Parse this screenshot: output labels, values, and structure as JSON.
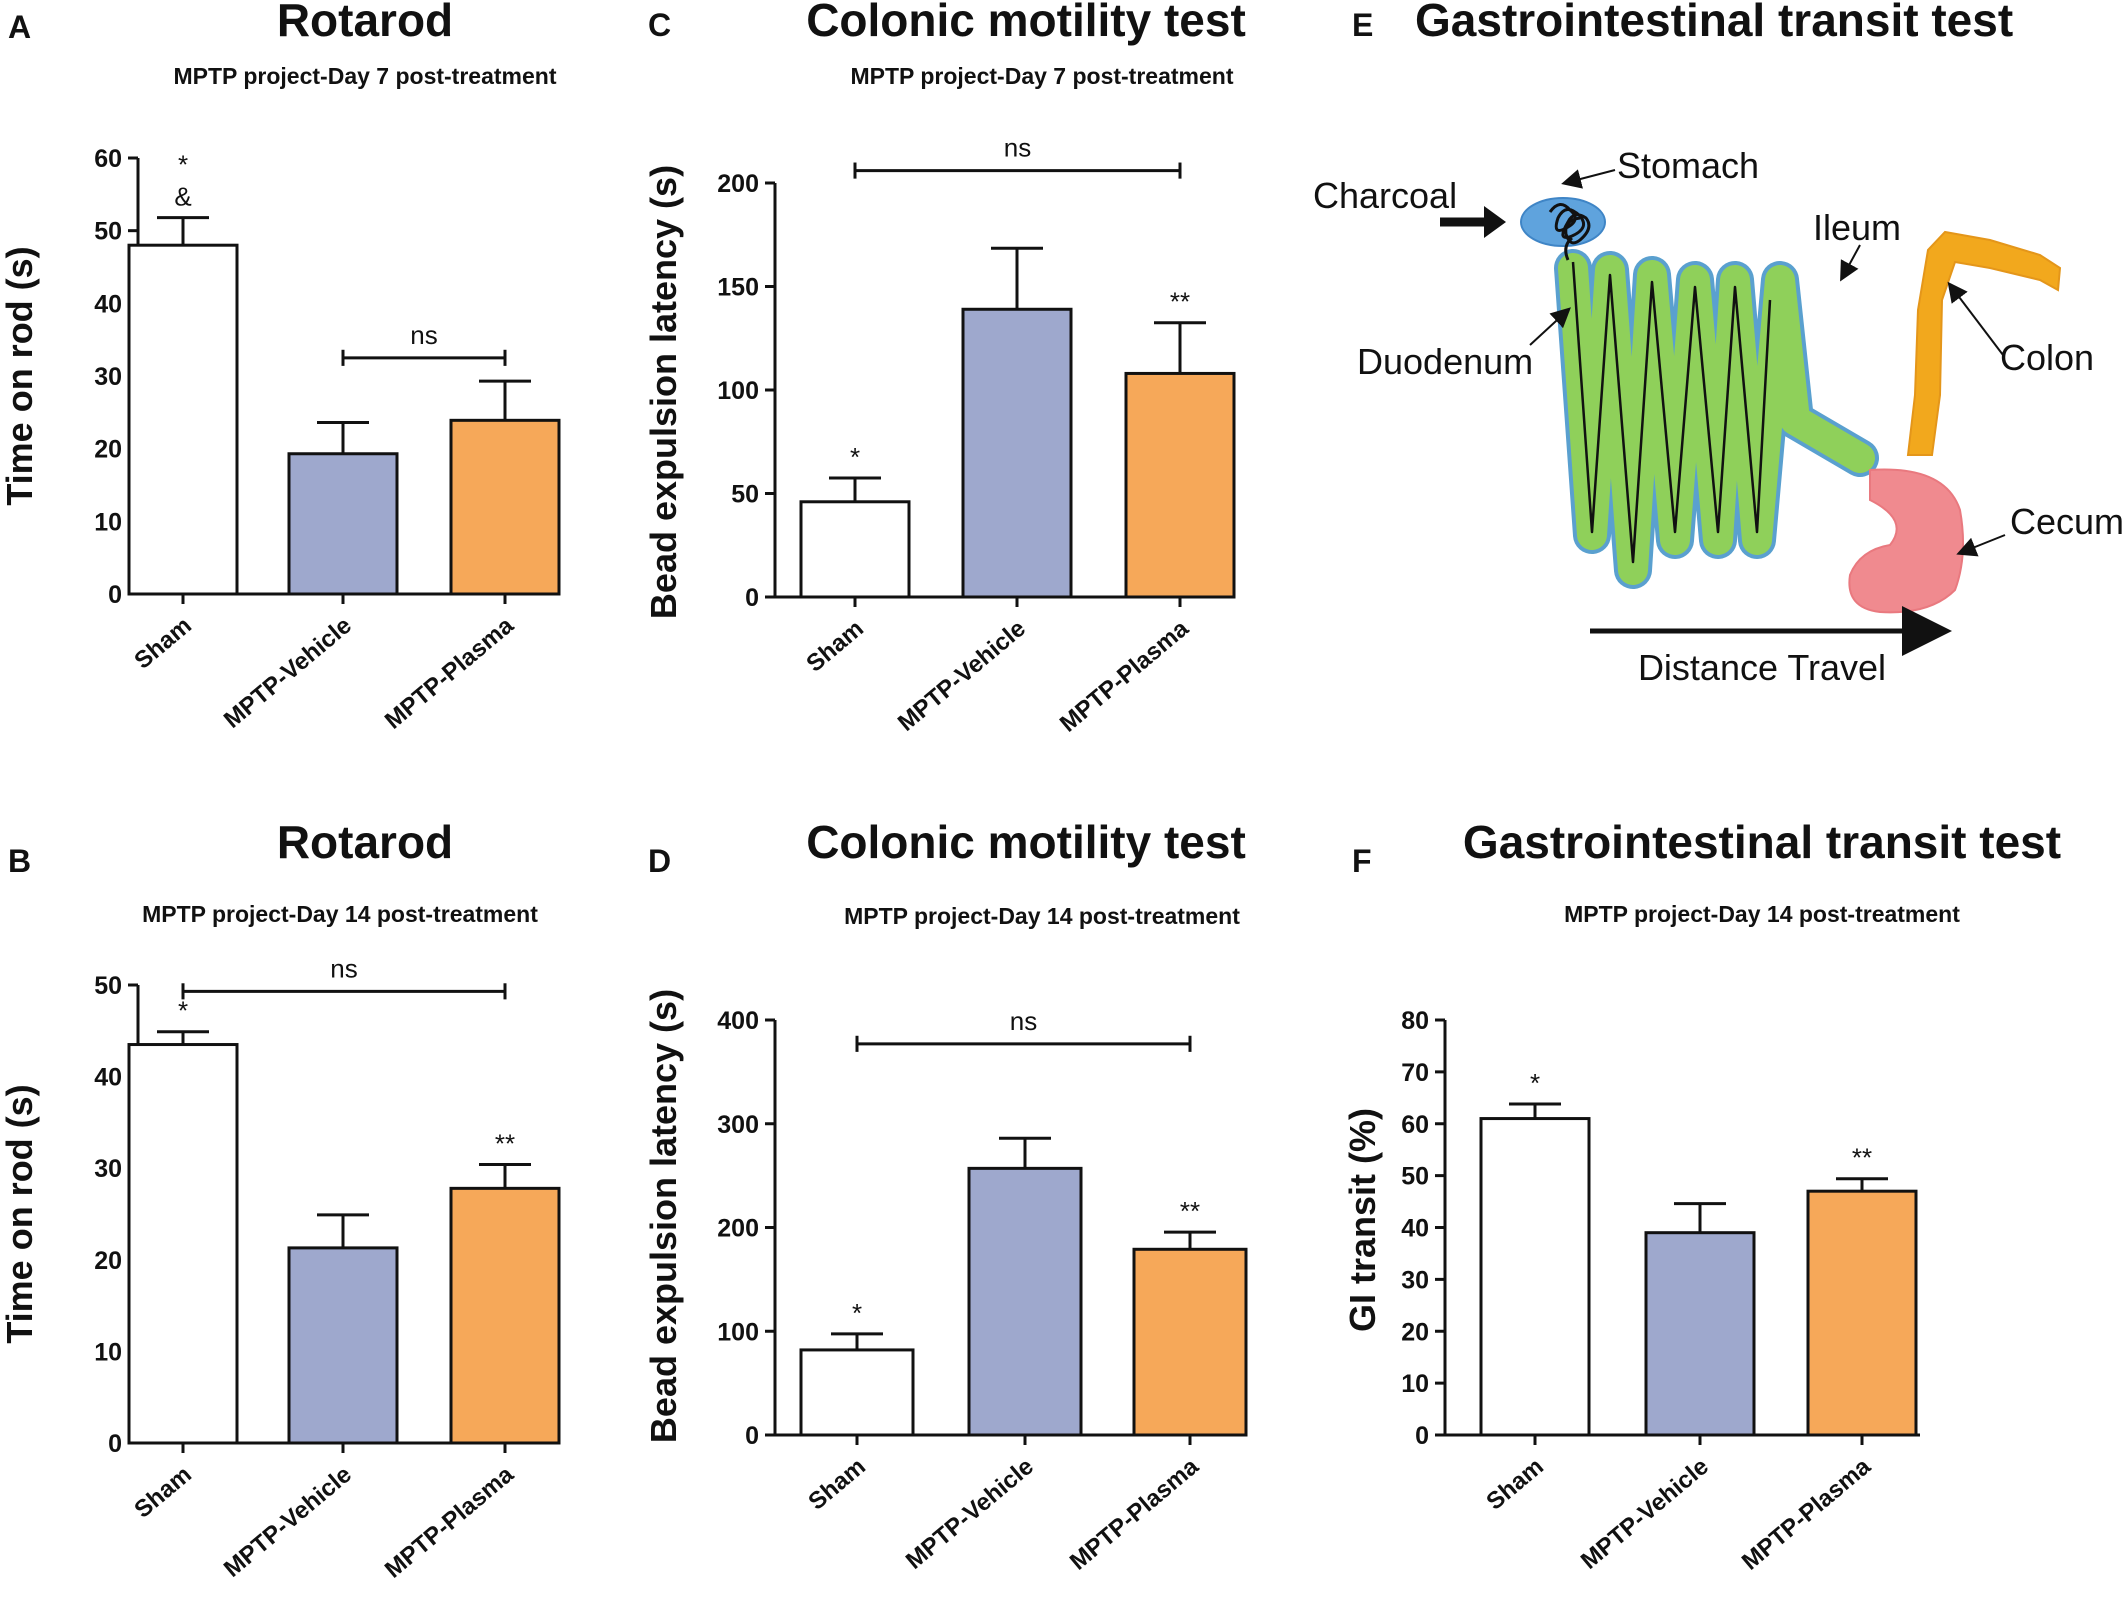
{
  "colors": {
    "Sham": "#ffffff",
    "MPTP-Vehicle": "#9ea8cd",
    "MPTP-Plasma": "#f6a859",
    "stroke": "#111111"
  },
  "chart_data": [
    {
      "id": "A",
      "panel_label": "A",
      "type": "bar",
      "title": "Rotarod",
      "subtitle": "MPTP project-Day 7 post-treatment",
      "xlabel": "",
      "ylabel": "Time on rod (s)",
      "ylim": [
        0,
        60
      ],
      "yticks": [
        "0",
        "10",
        "20",
        "30",
        "40",
        "50",
        "60"
      ],
      "categories": [
        "Sham",
        "MPTP-Vehicle",
        "MPTP-Plasma"
      ],
      "values": [
        48,
        19.3,
        23.9
      ],
      "errors": [
        3.8,
        4.3,
        5.4
      ],
      "annotations": [
        [
          "*",
          "&"
        ],
        [],
        []
      ],
      "brackets": [
        {
          "from": 1,
          "to": 2,
          "y": 32.5,
          "label": "ns"
        }
      ]
    },
    {
      "id": "B",
      "panel_label": "B",
      "type": "bar",
      "title": "Rotarod",
      "subtitle": "MPTP project-Day 14 post-treatment",
      "xlabel": "",
      "ylabel": "Time on rod (s)",
      "ylim": [
        0,
        50
      ],
      "yticks": [
        "0",
        "10",
        "20",
        "30",
        "40",
        "50"
      ],
      "categories": [
        "Sham",
        "MPTP-Vehicle",
        "MPTP-Plasma"
      ],
      "values": [
        43.5,
        21.3,
        27.8
      ],
      "errors": [
        1.4,
        3.6,
        2.6
      ],
      "annotations": [
        [
          "*"
        ],
        [],
        [
          "**"
        ]
      ],
      "brackets": [
        {
          "from": 0,
          "to": 2,
          "y": 49.3,
          "label": "ns"
        }
      ]
    },
    {
      "id": "C",
      "panel_label": "C",
      "type": "bar",
      "title": "Colonic motility test",
      "subtitle": "MPTP project-Day 7 post-treatment",
      "xlabel": "",
      "ylabel": "Bead expulsion latency (s)",
      "ylim": [
        0,
        200
      ],
      "yticks": [
        "0",
        "50",
        "100",
        "150",
        "200"
      ],
      "categories": [
        "Sham",
        "MPTP-Vehicle",
        "MPTP-Plasma"
      ],
      "values": [
        46,
        139,
        108
      ],
      "errors": [
        11.5,
        29.5,
        24.5
      ],
      "annotations": [
        [
          "*"
        ],
        [],
        [
          "**"
        ]
      ],
      "brackets": [
        {
          "from": 0,
          "to": 2,
          "y": 206,
          "label": "ns"
        }
      ]
    },
    {
      "id": "D",
      "panel_label": "D",
      "type": "bar",
      "title": "Colonic motility test",
      "subtitle": "MPTP project-Day 14 post-treatment",
      "xlabel": "",
      "ylabel": "Bead expulsion latency (s)",
      "ylim": [
        0,
        400
      ],
      "yticks": [
        "0",
        "100",
        "200",
        "300",
        "400"
      ],
      "categories": [
        "Sham",
        "MPTP-Vehicle",
        "MPTP-Plasma"
      ],
      "values": [
        82,
        257,
        179
      ],
      "errors": [
        15.5,
        29,
        16.5
      ],
      "annotations": [
        [
          "*"
        ],
        [],
        [
          "**"
        ]
      ],
      "brackets": [
        {
          "from": 0,
          "to": 2,
          "y": 377,
          "label": "ns"
        }
      ]
    },
    {
      "id": "F",
      "panel_label": "F",
      "type": "bar",
      "title": "Gastrointestinal transit test",
      "subtitle": "MPTP project-Day 14 post-treatment",
      "xlabel": "",
      "ylabel": "GI transit (%)",
      "ylim": [
        0,
        80
      ],
      "yticks": [
        "0",
        "10",
        "20",
        "30",
        "40",
        "50",
        "60",
        "70",
        "80"
      ],
      "categories": [
        "Sham",
        "MPTP-Vehicle",
        "MPTP-Plasma"
      ],
      "values": [
        61,
        39,
        47
      ],
      "errors": [
        2.8,
        5.6,
        2.4
      ],
      "annotations": [
        [
          "*"
        ],
        [],
        [
          "**"
        ]
      ],
      "brackets": []
    }
  ],
  "diagram": {
    "panel_label": "E",
    "title": "Gastrointestinal transit test",
    "labels": {
      "charcoal": "Charcoal",
      "stomach": "Stomach",
      "ileum": "Ileum",
      "duodenum": "Duodenum",
      "colon": "Colon",
      "cecum": "Cecum",
      "distance": "Distance Travel"
    },
    "colors": {
      "stomach": "#5fa3dd",
      "intestine": "#8fd05a",
      "intestine_edge": "#5aa0cf",
      "colon": "#f2a81d",
      "cecum": "#f08a8f"
    }
  }
}
